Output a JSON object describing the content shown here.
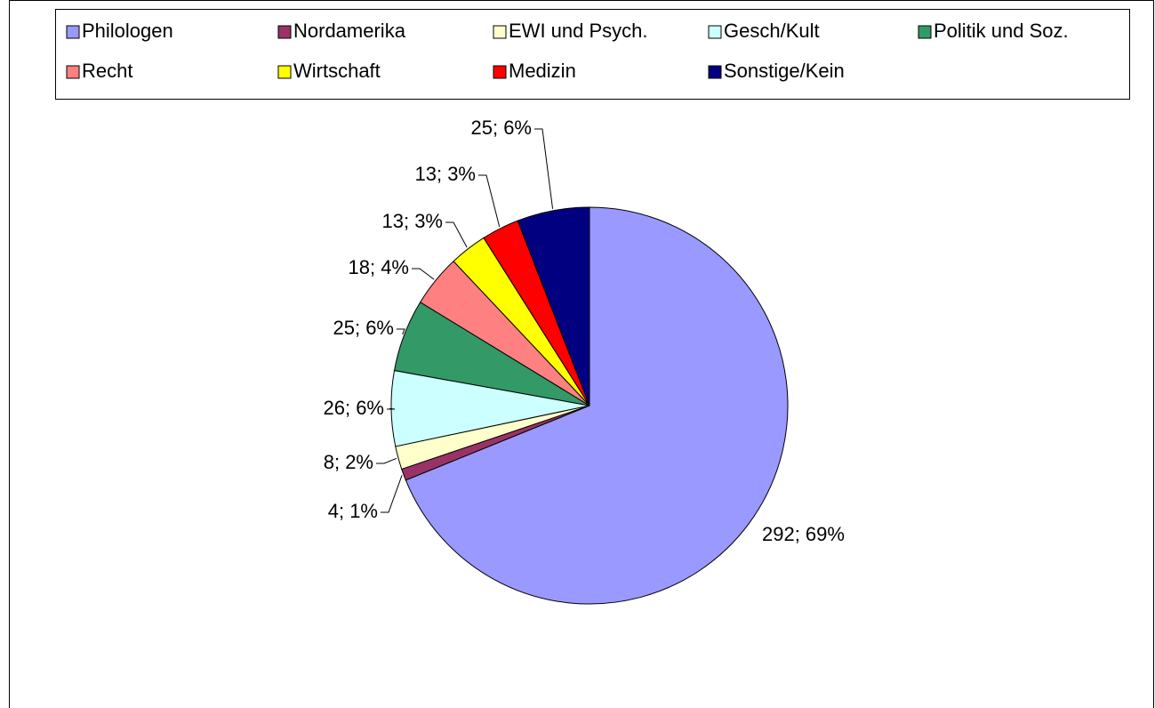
{
  "chart_data": {
    "type": "pie",
    "categories": [
      "Philologen",
      "Nordamerika",
      "EWI und Psych.",
      "Gesch/Kult",
      "Politik und Soz.",
      "Recht",
      "Wirtschaft",
      "Medizin",
      "Sonstige/Kein"
    ],
    "values": [
      292,
      4,
      8,
      26,
      25,
      18,
      13,
      13,
      25
    ],
    "value_labels": [
      "292; 69%",
      "4; 1%",
      "8; 2%",
      "26; 6%",
      "25; 6%",
      "18; 4%",
      "13; 3%",
      "13; 3%",
      "25; 6%"
    ],
    "colors": [
      "#9999ff",
      "#993366",
      "#ffffcc",
      "#ccffff",
      "#339966",
      "#ff8080",
      "#ffff00",
      "#ff0000",
      "#000080"
    ],
    "legend": "top"
  }
}
